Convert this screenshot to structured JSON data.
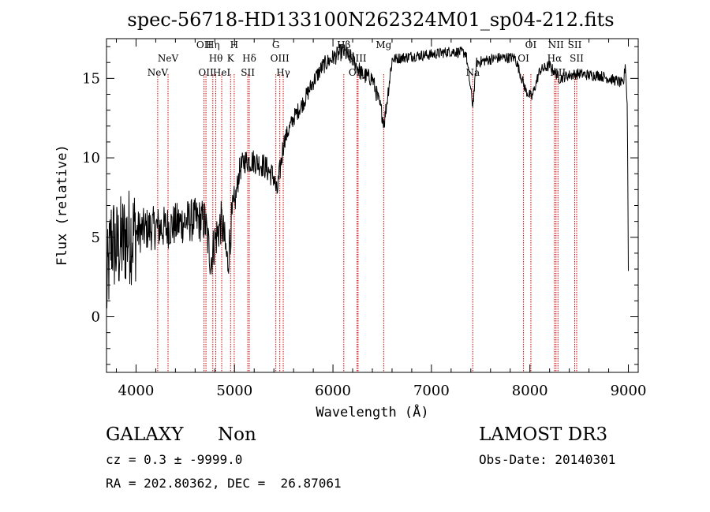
{
  "chart_data": {
    "type": "line",
    "title": "spec-56718-HD133100N262324M01_sp04-212.fits",
    "xlabel": "Wavelength (Å)",
    "ylabel": "Flux (relative)",
    "xlim": [
      3700,
      9100
    ],
    "ylim": [
      -3.5,
      17.5
    ],
    "xticks": [
      4000,
      5000,
      6000,
      7000,
      8000,
      9000
    ],
    "yticks": [
      0,
      5,
      10,
      15
    ],
    "line_color": "#000000",
    "marker_color": "#cc0000",
    "lines": [
      {
        "label": "NeV",
        "wave": 4220,
        "row": 3
      },
      {
        "label": "NeV",
        "wave": 4325,
        "row": 2
      },
      {
        "label": "OII",
        "wave": 4690,
        "row": 1
      },
      {
        "label": "OII",
        "wave": 4710,
        "row": 3
      },
      {
        "label": "Hη",
        "wave": 4780,
        "row": 1
      },
      {
        "label": "Hθ",
        "wave": 4810,
        "row": 2
      },
      {
        "label": "HeI",
        "wave": 4870,
        "row": 3
      },
      {
        "label": "H",
        "wave": 4997,
        "row": 1
      },
      {
        "label": "K",
        "wave": 4960,
        "row": 2
      },
      {
        "label": "Hδ",
        "wave": 5150,
        "row": 2
      },
      {
        "label": "SII",
        "wave": 5135,
        "row": 3
      },
      {
        "label": "G",
        "wave": 5420,
        "row": 1
      },
      {
        "label": "OIII",
        "wave": 5460,
        "row": 2
      },
      {
        "label": "Hγ",
        "wave": 5495,
        "row": 3
      },
      {
        "label": "Hβ",
        "wave": 6110,
        "row": 1
      },
      {
        "label": "OIII",
        "wave": 6245,
        "row": 2
      },
      {
        "label": "OIII",
        "wave": 6255,
        "row": 3
      },
      {
        "label": "Mg",
        "wave": 6515,
        "row": 1
      },
      {
        "label": "Na",
        "wave": 7420,
        "row": 3
      },
      {
        "label": "OI",
        "wave": 8010,
        "row": 1
      },
      {
        "label": "OI",
        "wave": 7935,
        "row": 2
      },
      {
        "label": "NII",
        "wave": 8265,
        "row": 1
      },
      {
        "label": "Hα",
        "wave": 8250,
        "row": 2
      },
      {
        "label": "NII",
        "wave": 8285,
        "row": 3
      },
      {
        "label": "SII",
        "wave": 8455,
        "row": 1
      },
      {
        "label": "SII",
        "wave": 8475,
        "row": 2
      }
    ],
    "spectrum_anchors": [
      [
        3700,
        1.5
      ],
      [
        3750,
        5.0
      ],
      [
        3800,
        4.2
      ],
      [
        3900,
        5.0
      ],
      [
        4000,
        5.3
      ],
      [
        4100,
        5.5
      ],
      [
        4200,
        5.6
      ],
      [
        4300,
        5.6
      ],
      [
        4400,
        5.8
      ],
      [
        4500,
        6.0
      ],
      [
        4600,
        6.1
      ],
      [
        4700,
        6.0
      ],
      [
        4760,
        3.5
      ],
      [
        4800,
        4.8
      ],
      [
        4870,
        6.0
      ],
      [
        4930,
        3.3
      ],
      [
        4970,
        6.0
      ],
      [
        5000,
        7.0
      ],
      [
        5050,
        9.2
      ],
      [
        5100,
        9.8
      ],
      [
        5200,
        9.8
      ],
      [
        5300,
        9.5
      ],
      [
        5400,
        8.8
      ],
      [
        5430,
        7.7
      ],
      [
        5500,
        11.0
      ],
      [
        5600,
        12.5
      ],
      [
        5700,
        13.5
      ],
      [
        5800,
        14.8
      ],
      [
        5900,
        15.8
      ],
      [
        6000,
        16.3
      ],
      [
        6100,
        16.7
      ],
      [
        6200,
        16.2
      ],
      [
        6300,
        15.2
      ],
      [
        6400,
        15.0
      ],
      [
        6480,
        13.2
      ],
      [
        6520,
        12.2
      ],
      [
        6600,
        16.2
      ],
      [
        6800,
        16.4
      ],
      [
        7000,
        16.5
      ],
      [
        7200,
        16.7
      ],
      [
        7350,
        16.6
      ],
      [
        7420,
        13.3
      ],
      [
        7460,
        16.0
      ],
      [
        7600,
        16.2
      ],
      [
        7700,
        16.3
      ],
      [
        7850,
        16.3
      ],
      [
        7960,
        14.2
      ],
      [
        8020,
        13.8
      ],
      [
        8100,
        15.5
      ],
      [
        8200,
        15.8
      ],
      [
        8300,
        15.0
      ],
      [
        8400,
        15.2
      ],
      [
        8500,
        15.3
      ],
      [
        8600,
        15.2
      ],
      [
        8700,
        15.2
      ],
      [
        8800,
        15.0
      ],
      [
        8900,
        14.8
      ],
      [
        8950,
        14.6
      ],
      [
        8970,
        16.0
      ],
      [
        8990,
        13.0
      ],
      [
        9000,
        3.0
      ]
    ]
  },
  "footer": {
    "obj_class": "GALAXY",
    "subclass": "Non",
    "survey": "LAMOST DR3",
    "cz": "cz = 0.3 ± -9999.0",
    "obs_date": "Obs-Date: 20140301",
    "coords": "RA = 202.80362, DEC =  26.87061"
  }
}
